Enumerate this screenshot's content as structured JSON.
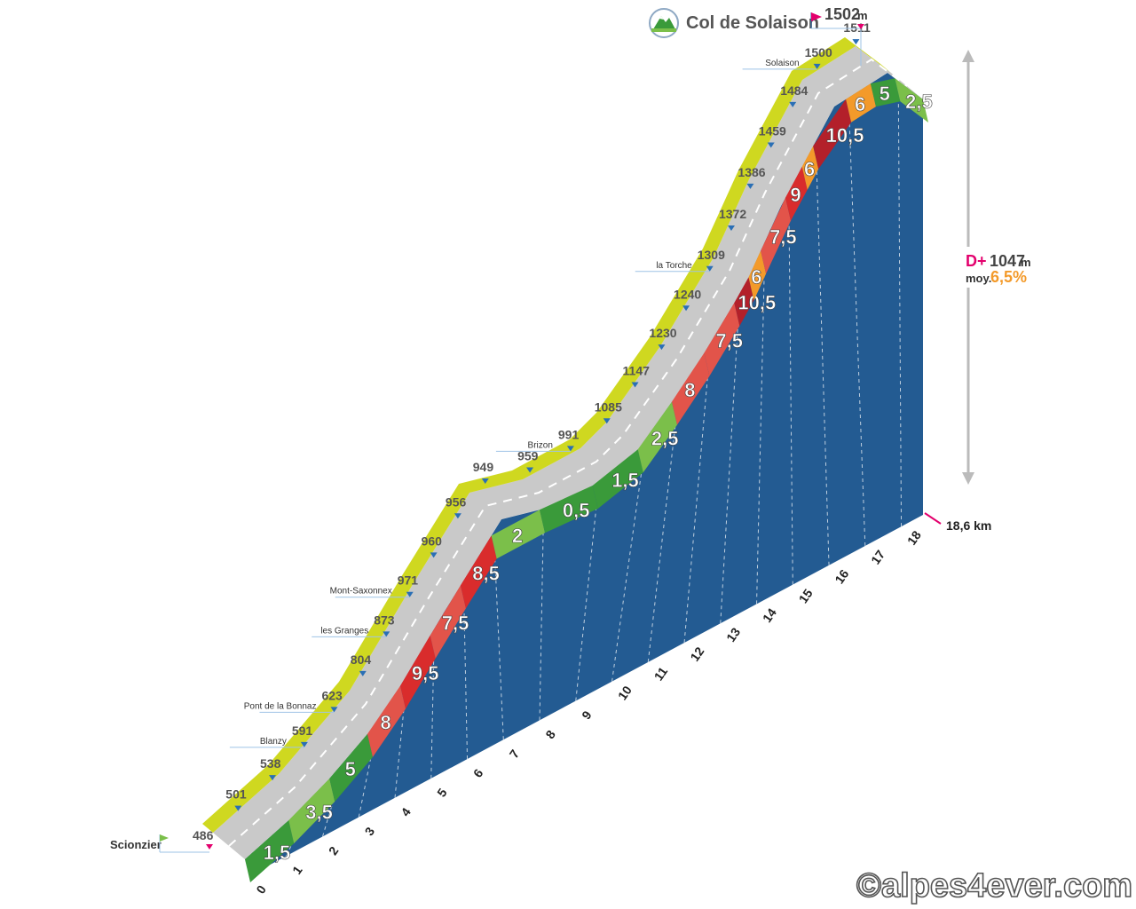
{
  "chart_data": {
    "type": "area",
    "title": "Col de Solaison",
    "summit_altitude": "1502",
    "altitude_unit": "m",
    "start_name": "Scionzier",
    "start_altitude": "486",
    "distance_label": "18,6 km",
    "elevation_gain": {
      "prefix": "D+",
      "value": "1047",
      "unit": "m"
    },
    "average_grade": {
      "prefix": "moy.",
      "value": "6,5%"
    },
    "km_ticks": [
      "0",
      "1",
      "2",
      "3",
      "4",
      "5",
      "6",
      "7",
      "8",
      "9",
      "10",
      "11",
      "12",
      "13",
      "14",
      "15",
      "16",
      "17",
      "18"
    ],
    "segments": [
      {
        "km": 0,
        "grade": "1,5"
      },
      {
        "km": 1,
        "grade": "3,5"
      },
      {
        "km": 2,
        "grade": "5"
      },
      {
        "km": 3,
        "grade": "8"
      },
      {
        "km": 4,
        "grade": "9,5"
      },
      {
        "km": 5,
        "grade": "7,5"
      },
      {
        "km": 6,
        "grade": "8,5"
      },
      {
        "km": 7,
        "grade": "2"
      },
      {
        "km": 8,
        "grade": "0,5"
      },
      {
        "km": 9,
        "grade": "1,5"
      },
      {
        "km": 10,
        "grade": "2,5"
      },
      {
        "km": 11,
        "grade": "8"
      },
      {
        "km": 12,
        "grade": "7,5"
      },
      {
        "km": 13,
        "grade": "10,5"
      },
      {
        "km": 13.5,
        "grade": "6"
      },
      {
        "km": 14,
        "grade": "7,5"
      },
      {
        "km": 15,
        "grade": "9"
      },
      {
        "km": 15.6,
        "grade": "6"
      },
      {
        "km": 16,
        "grade": "10,5"
      },
      {
        "km": 17,
        "grade": "6"
      },
      {
        "km": 17.5,
        "grade": "5"
      },
      {
        "km": 18,
        "grade": "2,5"
      }
    ],
    "altitude_points": [
      {
        "label": "501"
      },
      {
        "label": "538"
      },
      {
        "label": "591",
        "place": "Blanzy"
      },
      {
        "label": "623",
        "place": "Pont de la Bonnaz"
      },
      {
        "label": "804"
      },
      {
        "label": "873",
        "place": "les Granges"
      },
      {
        "label": "971",
        "place": "Mont-Saxonnex"
      },
      {
        "label": "960"
      },
      {
        "label": "956"
      },
      {
        "label": "949"
      },
      {
        "label": "959"
      },
      {
        "label": "991",
        "place": "Brizon"
      },
      {
        "label": "1085"
      },
      {
        "label": "1147"
      },
      {
        "label": "1230"
      },
      {
        "label": "1240"
      },
      {
        "label": "1309",
        "place": "la Torche"
      },
      {
        "label": "1372"
      },
      {
        "label": "1386"
      },
      {
        "label": "1459"
      },
      {
        "label": "1484"
      },
      {
        "label": "1500",
        "place": "Solaison"
      },
      {
        "label": "1511"
      }
    ]
  },
  "credit": "©alpes4ever.com",
  "colors": {
    "side": "#235b92",
    "road": "#c9c9c9",
    "edge": "#cfd820",
    "green": "#3a9a3a",
    "lightgreen": "#7bbf4a",
    "orange": "#f39a2a",
    "lightred": "#e2544a",
    "red": "#d92c2c",
    "darkred": "#b3202a",
    "marker": "#2a6fb5",
    "flag": "#e3006d",
    "dplus": "#e3006d",
    "avg": "#f39a2a"
  }
}
